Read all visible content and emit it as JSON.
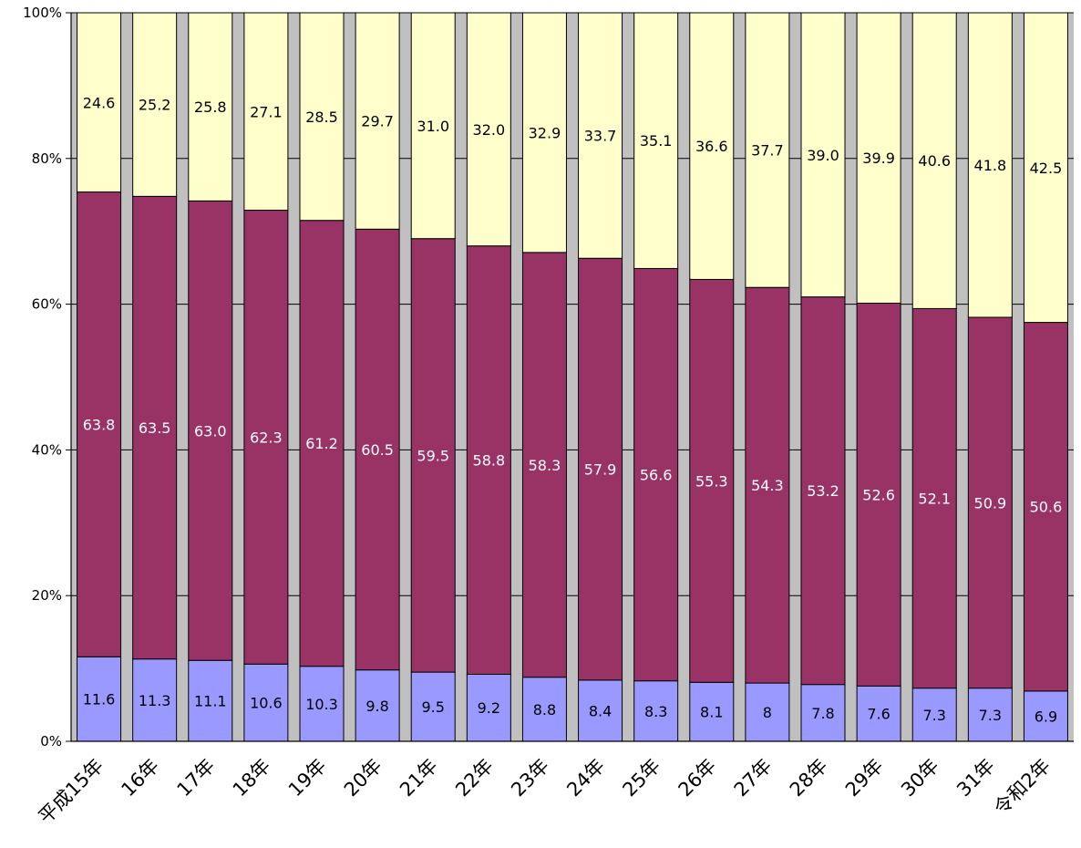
{
  "chart_data": {
    "type": "bar",
    "stacked": true,
    "normalized": true,
    "categories": [
      "平成15年",
      "16年",
      "17年",
      "18年",
      "19年",
      "20年",
      "21年",
      "22年",
      "23年",
      "24年",
      "25年",
      "26年",
      "27年",
      "28年",
      "29年",
      "30年",
      "31年",
      "令和2年"
    ],
    "series": [
      {
        "values": [
          11.6,
          11.3,
          11.1,
          10.6,
          10.3,
          9.8,
          9.5,
          9.2,
          8.8,
          8.4,
          8.3,
          8.1,
          8,
          7.8,
          7.6,
          7.3,
          7.3,
          6.9
        ],
        "labels": [
          "11.6",
          "11.3",
          "11.1",
          "10.6",
          "10.3",
          "9.8",
          "9.5",
          "9.2",
          "8.8",
          "8.4",
          "8.3",
          "8.1",
          "8",
          "7.8",
          "7.6",
          "7.3",
          "7.3",
          "6.9"
        ],
        "color": "#9999ff",
        "label_color": "#000000"
      },
      {
        "values": [
          63.8,
          63.5,
          63.0,
          62.3,
          61.2,
          60.5,
          59.5,
          58.8,
          58.3,
          57.9,
          56.6,
          55.3,
          54.3,
          53.2,
          52.6,
          52.1,
          50.9,
          50.6
        ],
        "labels": [
          "63.8",
          "63.5",
          "63.0",
          "62.3",
          "61.2",
          "60.5",
          "59.5",
          "58.8",
          "58.3",
          "57.9",
          "56.6",
          "55.3",
          "54.3",
          "53.2",
          "52.6",
          "52.1",
          "50.9",
          "50.6"
        ],
        "color": "#993366",
        "label_color": "#ffffff"
      },
      {
        "values": [
          24.6,
          25.2,
          25.8,
          27.1,
          28.5,
          29.7,
          31.0,
          32.0,
          32.9,
          33.7,
          35.1,
          36.6,
          37.7,
          39.0,
          39.9,
          40.6,
          41.8,
          42.5
        ],
        "labels": [
          "24.6",
          "25.2",
          "25.8",
          "27.1",
          "28.5",
          "29.7",
          "31.0",
          "32.0",
          "32.9",
          "33.7",
          "35.1",
          "36.6",
          "37.7",
          "39.0",
          "39.9",
          "40.6",
          "41.8",
          "42.5"
        ],
        "color": "#ffffcc",
        "label_color": "#000000"
      }
    ],
    "y_ticks": [
      "0%",
      "20%",
      "40%",
      "60%",
      "80%",
      "100%"
    ],
    "ylim": [
      0,
      100
    ],
    "plot_background": "#c0c0c0",
    "grid": true,
    "legend": "none"
  }
}
